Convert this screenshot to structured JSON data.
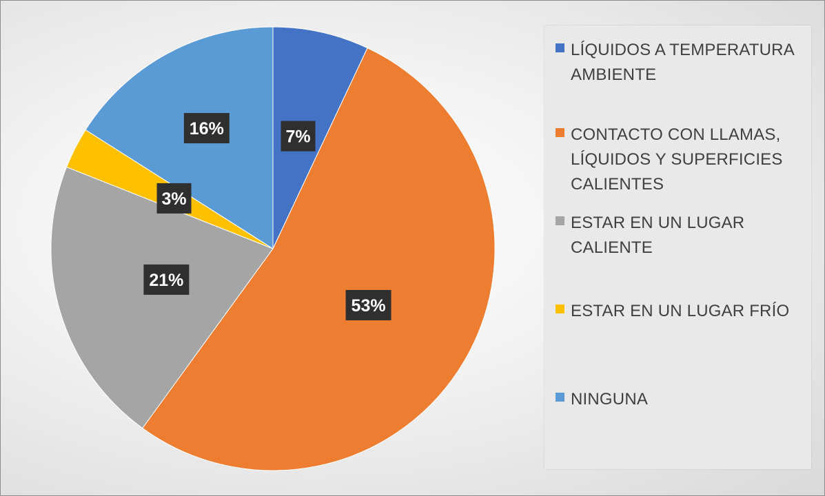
{
  "chart_data": {
    "type": "pie",
    "title": "",
    "categories": [
      "LÍQUIDOS A TEMPERATURA AMBIENTE",
      "CONTACTO CON LLAMAS, LÍQUIDOS Y SUPERFICIES CALIENTES",
      "ESTAR EN UN LUGAR CALIENTE",
      "ESTAR EN UN LUGAR FRÍO",
      "NINGUNA"
    ],
    "values": [
      7,
      53,
      21,
      3,
      16
    ],
    "labels": [
      "7%",
      "53%",
      "21%",
      "3%",
      "16%"
    ],
    "colors": [
      "#4472c4",
      "#ed7d31",
      "#a5a5a5",
      "#ffc000",
      "#5b9bd5"
    ],
    "legend_position": "right",
    "legend": [
      {
        "lines": [
          "LÍQUIDOS A TEMPERATURA",
          "AMBIENTE"
        ]
      },
      {
        "lines": [
          "CONTACTO CON LLAMAS,",
          "LÍQUIDOS Y SUPERFICIES",
          "CALIENTES"
        ]
      },
      {
        "lines": [
          "ESTAR EN UN LUGAR",
          "CALIENTE"
        ]
      },
      {
        "lines": [
          "ESTAR EN UN LUGAR FRÍO"
        ]
      },
      {
        "lines": [
          "NINGUNA"
        ]
      }
    ]
  }
}
